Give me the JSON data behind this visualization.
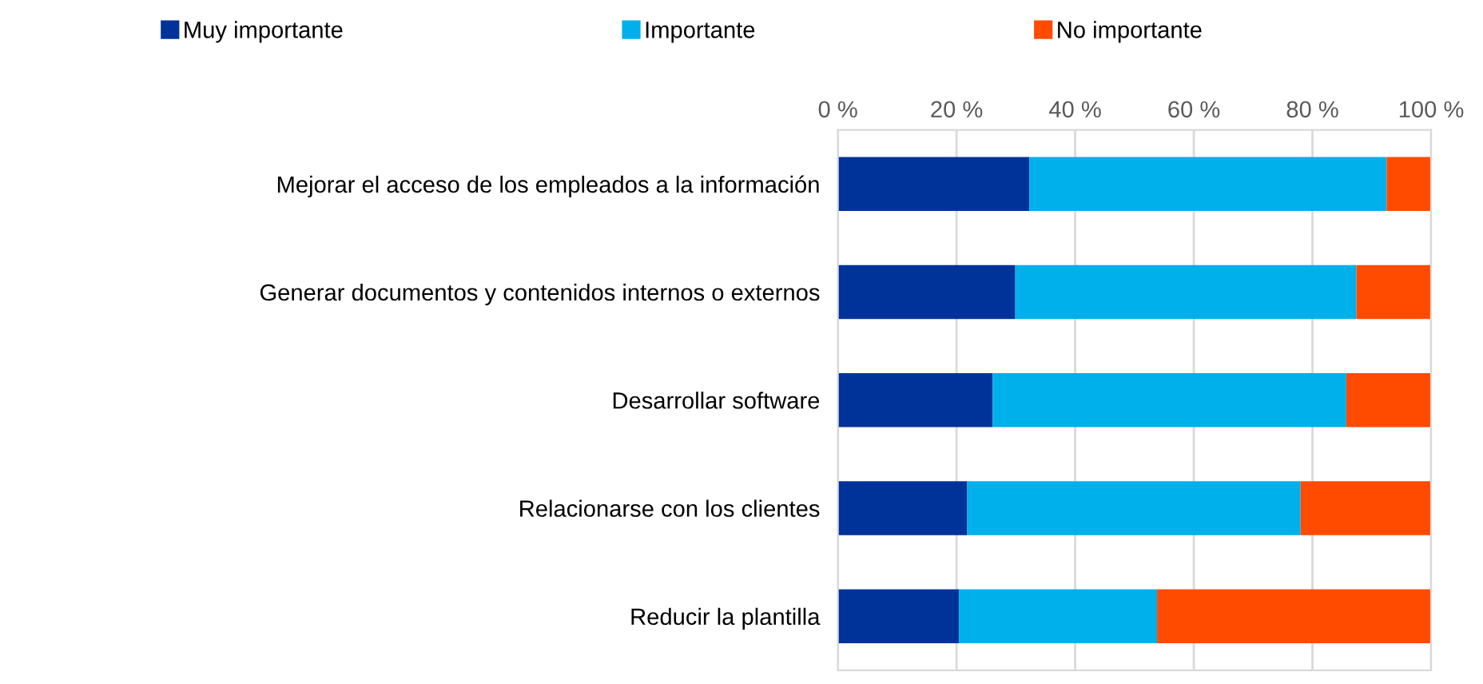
{
  "chart_data": {
    "type": "bar",
    "orientation": "horizontal",
    "stacked": true,
    "categories": [
      "Mejorar el acceso de los empleados a la información",
      "Generar documentos y contenidos internos o externos",
      "Desarrollar software",
      "Relacionarse con los clientes",
      "Reducir la plantilla"
    ],
    "series": [
      {
        "name": "Muy importante",
        "color": "#003399",
        "values": [
          32.3,
          29.9,
          26.1,
          21.8,
          20.4
        ]
      },
      {
        "name": "Importante",
        "color": "#00b0eb",
        "values": [
          60.2,
          57.5,
          59.6,
          56.2,
          33.4
        ]
      },
      {
        "name": "No importante",
        "color": "#ff4b00",
        "values": [
          7.5,
          12.6,
          14.3,
          22.0,
          46.2
        ]
      }
    ],
    "xlim": [
      0,
      100
    ],
    "xticks": [
      {
        "value": 0,
        "label": "0 %"
      },
      {
        "value": 20,
        "label": "20 %"
      },
      {
        "value": 40,
        "label": "40 %"
      },
      {
        "value": 60,
        "label": "60 %"
      },
      {
        "value": 80,
        "label": "80 %"
      },
      {
        "value": 100,
        "label": "100 %"
      }
    ],
    "grid": "x",
    "legend": "top"
  }
}
